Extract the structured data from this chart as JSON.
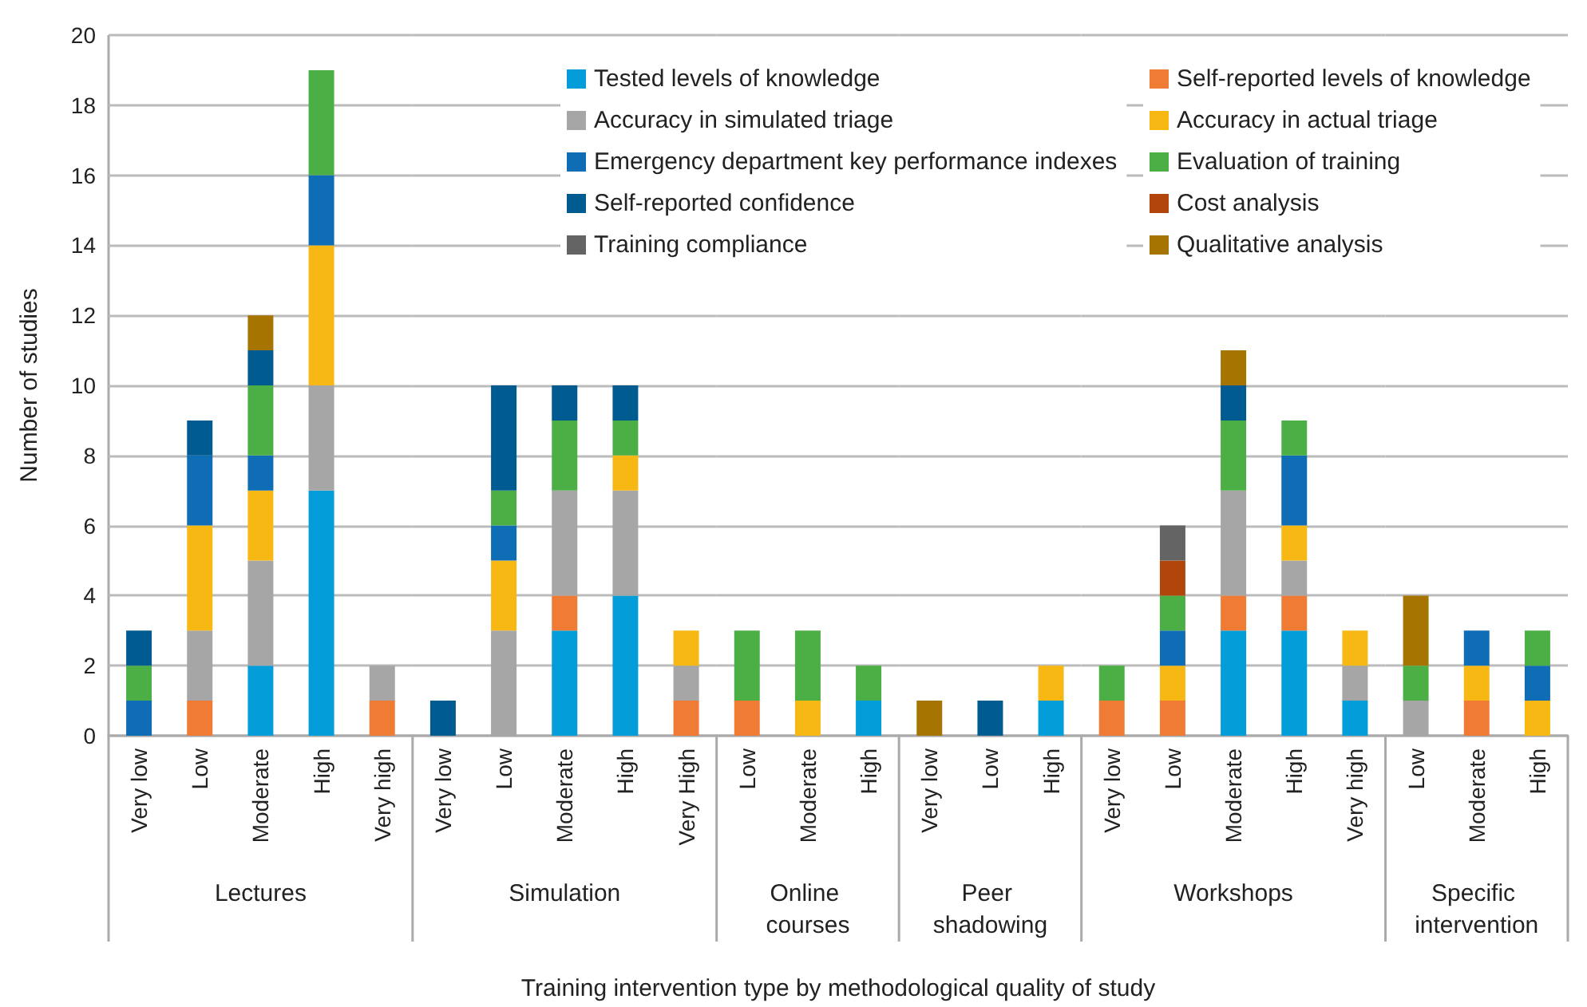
{
  "chart_data": [
    {
      "type": "bar",
      "stacked": true,
      "xlabel": "Lectures",
      "ylabel": "Number of studies",
      "categories": [
        "Very low",
        "Low",
        "Moderate",
        "High",
        "Very high"
      ],
      "series": [
        {
          "color": "#039dda",
          "values": [
            null,
            null,
            2,
            7,
            null
          ]
        },
        {
          "color": "#ef7b35",
          "values": [
            null,
            1,
            null,
            null,
            1
          ]
        },
        {
          "color": "#a6a6a6",
          "values": [
            null,
            2,
            3,
            3,
            1
          ]
        },
        {
          "color": "#f8b814",
          "values": [
            null,
            3,
            2,
            4,
            null
          ]
        },
        {
          "color": "#0f6db6",
          "values": [
            1,
            2,
            1,
            2,
            null
          ]
        },
        {
          "color": "#4caf46",
          "values": [
            1,
            null,
            2,
            3,
            null
          ]
        },
        {
          "color": "#005b91",
          "values": [
            1,
            1,
            1,
            null,
            null
          ]
        },
        {
          "color": "#a67400",
          "values": [
            null,
            null,
            1,
            null,
            null
          ]
        }
      ],
      "ylim": [
        0,
        20
      ],
      "yticks": [
        0,
        2,
        4,
        6,
        8,
        10,
        12,
        14,
        16,
        18,
        20
      ],
      "grid": "y",
      "annotations": [
        "Training intervention type by methodological quality of study"
      ]
    },
    {
      "type": "bar",
      "stacked": true,
      "xlabel": "Simulation",
      "categories": [
        "Very low",
        "Low",
        "Moderate",
        "High",
        "Very High"
      ],
      "series": [
        {
          "color": "#039dda",
          "values": [
            null,
            null,
            3,
            4,
            null
          ]
        },
        {
          "color": "#ef7b35",
          "values": [
            null,
            null,
            1,
            null,
            1
          ]
        },
        {
          "color": "#a6a6a6",
          "values": [
            null,
            3,
            3,
            3,
            1
          ]
        },
        {
          "color": "#f8b814",
          "values": [
            null,
            2,
            null,
            1,
            1
          ]
        },
        {
          "color": "#0f6db6",
          "values": [
            null,
            1,
            null,
            null,
            null
          ]
        },
        {
          "color": "#4caf46",
          "values": [
            null,
            1,
            2,
            1,
            null
          ]
        },
        {
          "color": "#005b91",
          "values": [
            1,
            3,
            1,
            1,
            null
          ]
        }
      ],
      "ylim": [
        0,
        20
      ],
      "yticks": [
        0,
        2,
        4,
        6,
        8,
        10,
        12,
        14,
        16,
        18,
        20
      ],
      "grid": "y",
      "tick_labels": "x"
    },
    {
      "type": "bar",
      "stacked": true,
      "xlabel": "Online courses",
      "categories": [
        "Low",
        "Moderate",
        "High"
      ],
      "series": [
        {
          "color": "#039dda",
          "values": [
            null,
            null,
            1
          ]
        },
        {
          "color": "#ef7b35",
          "values": [
            1,
            null,
            null
          ]
        },
        {
          "color": "#f8b814",
          "values": [
            null,
            1,
            null
          ]
        },
        {
          "color": "#4caf46",
          "values": [
            2,
            2,
            1
          ]
        }
      ],
      "ylim": [
        0,
        20
      ],
      "yticks": [
        0,
        2,
        4,
        6,
        8,
        10,
        12,
        14,
        16,
        18,
        20
      ],
      "grid": "y",
      "tick_labels": "x"
    },
    {
      "type": "bar",
      "stacked": true,
      "xlabel": "Peer shadowing",
      "categories": [
        "Very low",
        "Low",
        "High"
      ],
      "series": [
        {
          "color": "#039dda",
          "values": [
            null,
            null,
            1
          ]
        },
        {
          "color": "#f8b814",
          "values": [
            null,
            null,
            1
          ]
        },
        {
          "color": "#005b91",
          "values": [
            null,
            1,
            null
          ]
        },
        {
          "color": "#a67400",
          "values": [
            1,
            null,
            null
          ]
        }
      ],
      "ylim": [
        0,
        20
      ],
      "yticks": [
        0,
        2,
        4,
        6,
        8,
        10,
        12,
        14,
        16,
        18,
        20
      ],
      "grid": "y",
      "tick_labels": "x"
    },
    {
      "type": "bar",
      "stacked": true,
      "xlabel": "Workshops",
      "categories": [
        "Very low",
        "Low",
        "Moderate",
        "High",
        "Very high"
      ],
      "series": [
        {
          "name": "Tested levels of knowledge",
          "color": "#039dda",
          "values": [
            null,
            null,
            3,
            3,
            1
          ]
        },
        {
          "name": "Self-reported levels of knowledge",
          "color": "#ef7b35",
          "values": [
            1,
            1,
            1,
            1,
            null
          ]
        },
        {
          "name": "Accuracy in simulated triage",
          "color": "#a6a6a6",
          "values": [
            null,
            null,
            3,
            1,
            1
          ]
        },
        {
          "name": "Accuracy in actual triage",
          "color": "#f8b814",
          "values": [
            null,
            1,
            null,
            1,
            1
          ]
        },
        {
          "name": "Emergency department key performance indexes",
          "color": "#0f6db6",
          "values": [
            null,
            1,
            null,
            2,
            null
          ]
        },
        {
          "name": "Evaluation of training",
          "color": "#4caf46",
          "values": [
            1,
            1,
            2,
            1,
            null
          ]
        },
        {
          "name": "Self-reported confidence",
          "color": "#005b91",
          "values": [
            null,
            null,
            1,
            null,
            null
          ]
        },
        {
          "name": "Cost analysis",
          "color": "#b1450a",
          "values": [
            null,
            1,
            null,
            null,
            null
          ]
        },
        {
          "name": "Training compliance",
          "color": "#646464",
          "values": [
            null,
            1,
            null,
            null,
            null
          ]
        },
        {
          "name": "Qualitative analysis",
          "color": "#a67400",
          "values": [
            null,
            null,
            1,
            null,
            null
          ]
        }
      ],
      "ylim": [
        0,
        20
      ],
      "yticks": [
        0,
        2,
        4,
        6,
        8,
        10,
        12,
        14,
        16,
        18,
        20
      ],
      "grid": "y",
      "tick_labels": "x",
      "legend": "top left"
    },
    {
      "type": "bar",
      "stacked": true,
      "xlabel": "Specific intervention",
      "categories": [
        "Low",
        "Moderate",
        "High"
      ],
      "series": [
        {
          "color": "#ef7b35",
          "values": [
            null,
            1,
            null
          ]
        },
        {
          "color": "#a6a6a6",
          "values": [
            1,
            null,
            null
          ]
        },
        {
          "color": "#f8b814",
          "values": [
            null,
            1,
            1
          ]
        },
        {
          "color": "#0f6db6",
          "values": [
            null,
            1,
            1
          ]
        },
        {
          "color": "#4caf46",
          "values": [
            1,
            null,
            1
          ]
        },
        {
          "color": "#a67400",
          "values": [
            2,
            null,
            null
          ]
        }
      ],
      "ylim": [
        0,
        20
      ],
      "yticks": [
        0,
        2,
        4,
        6,
        8,
        10,
        12,
        14,
        16,
        18,
        20
      ],
      "grid": "y",
      "tick_labels": "x"
    }
  ]
}
